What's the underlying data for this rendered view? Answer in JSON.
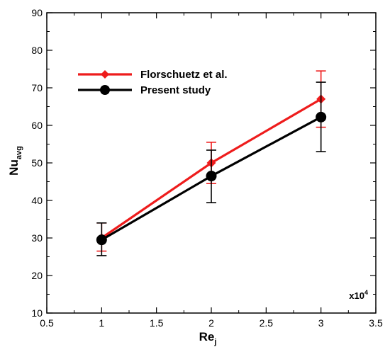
{
  "chart_data": {
    "type": "line",
    "x": [
      1,
      2,
      3
    ],
    "xlim": [
      0.5,
      3.5
    ],
    "ylim": [
      10,
      90
    ],
    "x_ticks": [
      "0.5",
      "1",
      "1.5",
      "2",
      "2.5",
      "3",
      "3.5"
    ],
    "y_ticks": [
      "10",
      "20",
      "30",
      "40",
      "50",
      "60",
      "70",
      "80",
      "90"
    ],
    "xlabel": {
      "main": "Re",
      "sub": "j"
    },
    "ylabel": {
      "main": "Nu",
      "sub": "avg"
    },
    "x_multiplier": {
      "base": "x10",
      "exp": "4"
    },
    "grid": false,
    "legend_position": "top-left",
    "series": [
      {
        "name": "Florschuetz et al.",
        "color": "#ee1c1c",
        "marker": "diamond",
        "values": [
          30.0,
          50.0,
          67.0
        ],
        "err_low": [
          26.5,
          44.5,
          59.5
        ],
        "err_high": [
          34.0,
          55.5,
          74.5
        ]
      },
      {
        "name": "Present study",
        "color": "#000000",
        "marker": "circle",
        "values": [
          29.5,
          46.5,
          62.2
        ],
        "err_low": [
          25.3,
          39.4,
          53.0
        ],
        "err_high": [
          34.0,
          53.4,
          71.5
        ]
      }
    ]
  }
}
